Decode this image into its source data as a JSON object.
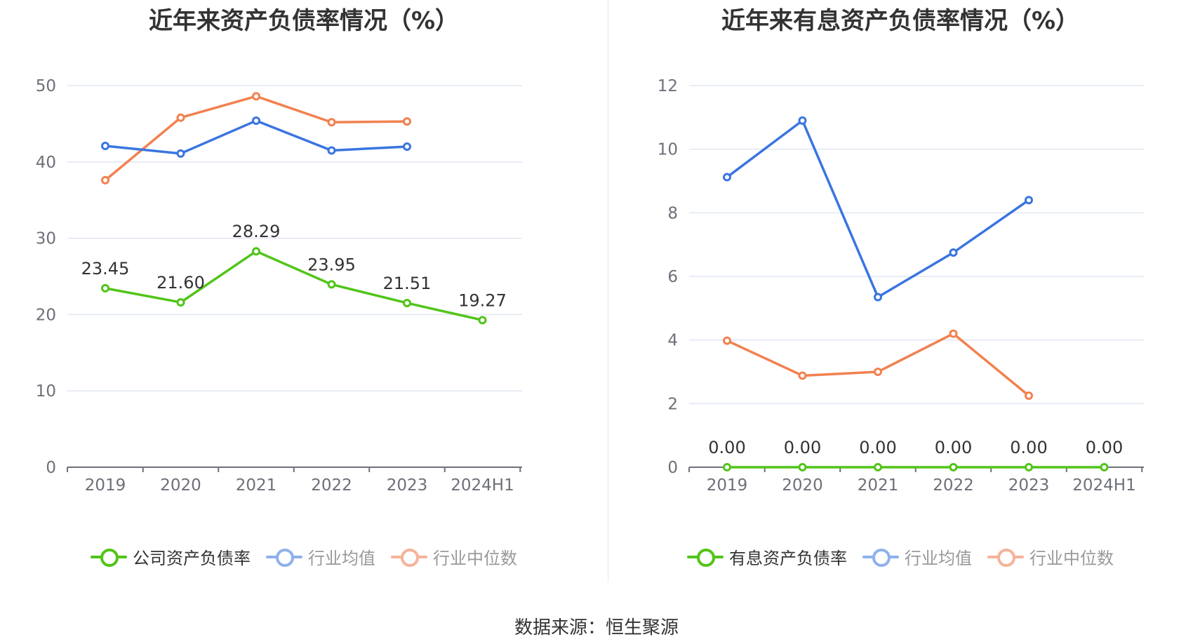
{
  "source": "数据来源：恒生聚源",
  "charts": [
    {
      "title": "近年来资产负债率情况（%）",
      "legend": [
        {
          "name": "公司资产负债率",
          "color": "#52c41a",
          "text_color": "#333333"
        },
        {
          "name": "行业均值",
          "color": "#8fb1ec",
          "text_color": "#999999"
        },
        {
          "name": "行业中位数",
          "color": "#f5b39a",
          "text_color": "#999999"
        }
      ]
    },
    {
      "title": "近年来有息资产负债率情况（%）",
      "legend": [
        {
          "name": "有息资产负债率",
          "color": "#52c41a",
          "text_color": "#333333"
        },
        {
          "name": "行业均值",
          "color": "#8fb1ec",
          "text_color": "#999999"
        },
        {
          "name": "行业中位数",
          "color": "#f5b39a",
          "text_color": "#999999"
        }
      ]
    }
  ],
  "chart_data": [
    {
      "type": "line",
      "title": "近年来资产负债率情况（%）",
      "categories": [
        "2019",
        "2020",
        "2021",
        "2022",
        "2023",
        "2024H1"
      ],
      "ylim": [
        0,
        50
      ],
      "yticks": [
        0,
        10,
        20,
        30,
        40,
        50
      ],
      "grid": true,
      "legend_position": "bottom",
      "series": [
        {
          "name": "公司资产负债率",
          "color": "#52c41a",
          "values": [
            23.45,
            21.6,
            28.29,
            23.95,
            21.51,
            19.27
          ],
          "labels": [
            "23.45",
            "21.60",
            "28.29",
            "23.95",
            "21.51",
            "19.27"
          ]
        },
        {
          "name": "行业均值",
          "color": "#3a75e0",
          "values": [
            42.1,
            41.1,
            45.4,
            41.5,
            42.0,
            null
          ]
        },
        {
          "name": "行业中位数",
          "color": "#f2814f",
          "values": [
            37.6,
            45.8,
            48.6,
            45.2,
            45.3,
            null
          ]
        }
      ]
    },
    {
      "type": "line",
      "title": "近年来有息资产负债率情况（%）",
      "categories": [
        "2019",
        "2020",
        "2021",
        "2022",
        "2023",
        "2024H1"
      ],
      "ylim": [
        0,
        12
      ],
      "yticks": [
        0,
        2,
        4,
        6,
        8,
        10,
        12
      ],
      "grid": true,
      "legend_position": "bottom",
      "series": [
        {
          "name": "有息资产负债率",
          "color": "#52c41a",
          "values": [
            0.0,
            0.0,
            0.0,
            0.0,
            0.0,
            0.0
          ],
          "labels": [
            "0.00",
            "0.00",
            "0.00",
            "0.00",
            "0.00",
            "0.00"
          ]
        },
        {
          "name": "行业均值",
          "color": "#3a75e0",
          "values": [
            9.12,
            10.9,
            5.35,
            6.75,
            8.4,
            null
          ]
        },
        {
          "name": "行业中位数",
          "color": "#f2814f",
          "values": [
            3.98,
            2.88,
            3.0,
            4.2,
            2.25,
            null
          ]
        }
      ]
    }
  ]
}
